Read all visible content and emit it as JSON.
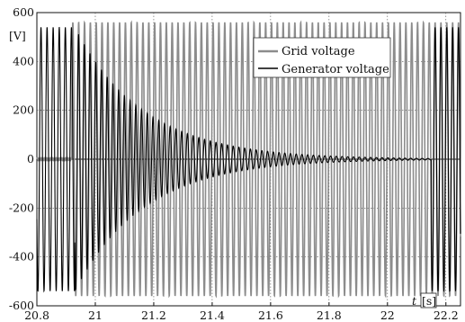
{
  "chart_data": {
    "type": "line",
    "title": "",
    "xlabel": "t",
    "xunit": "[s]",
    "ylabel": "",
    "yunit": "[V]",
    "xlim": [
      20.8,
      22.25
    ],
    "ylim": [
      -600,
      600
    ],
    "x_ticks": [
      20.8,
      21.0,
      21.2,
      21.4,
      21.6,
      21.8,
      22.0,
      22.2
    ],
    "x_tick_labels": [
      "20.8",
      "21",
      "21.2",
      "21.4",
      "21.6",
      "21.8",
      "22",
      "22.2"
    ],
    "y_ticks": [
      600,
      400,
      200,
      0,
      -200,
      -400,
      -600
    ],
    "y_tick_labels": [
      "600",
      "400",
      "200",
      "0",
      "-200",
      "-400",
      "-600"
    ],
    "grid": true,
    "legend_position": "top-right",
    "series": [
      {
        "name": "Grid voltage",
        "color": "#8c8c8c",
        "description": "sinusoid ~50 Hz, amplitude ~560 V, starts at ~20.92 s, continuous to end",
        "amplitude": 560,
        "frequency_hz": 50,
        "start": 20.92
      },
      {
        "name": "Generator voltage",
        "color": "#000000",
        "description": "sinusoid amplitude ~540 V before 20.93 s, then exponentially decaying from ~540 V to ~0 near 22.15 s, then resumes ~540 V",
        "amplitude_initial": 540,
        "decay_start": 20.93,
        "decay_end": 22.15,
        "frequency_hz": 50
      }
    ]
  }
}
